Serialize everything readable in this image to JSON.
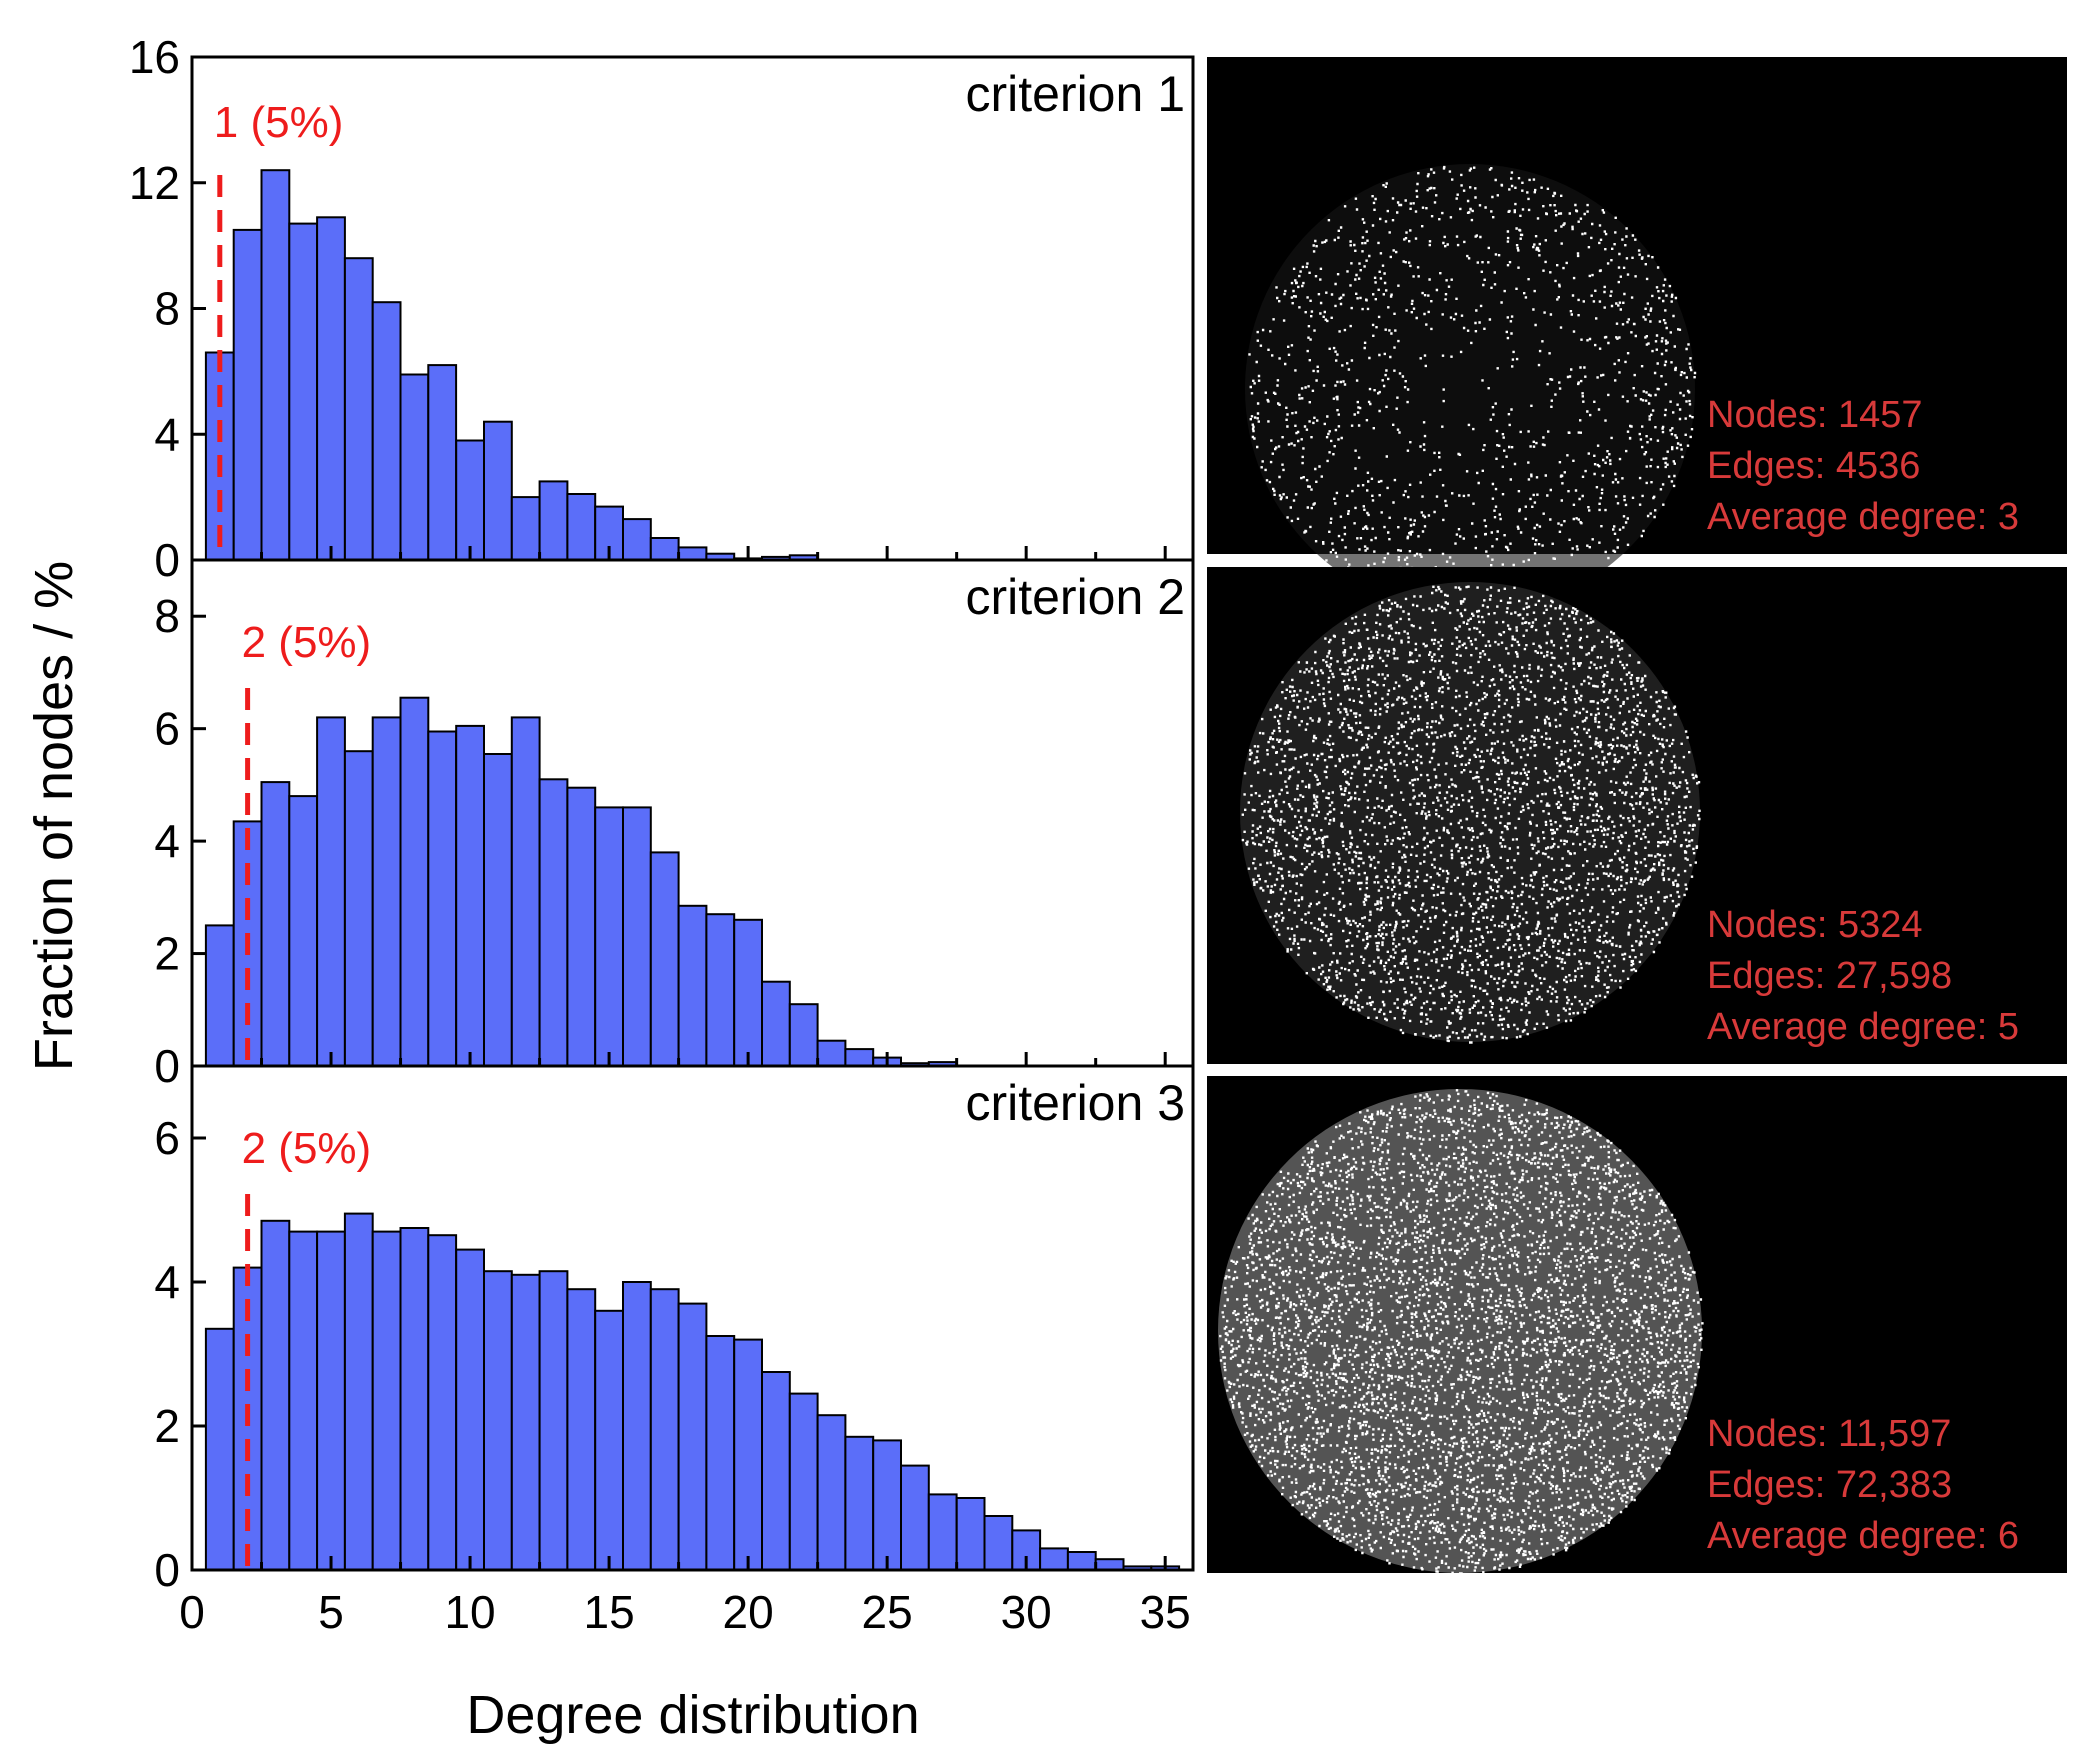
{
  "chart_data": [
    {
      "type": "bar",
      "title": "criterion 1",
      "xlabel": "Degree distribution",
      "ylabel": "Fraction of nodes / %",
      "xlim": [
        0,
        36
      ],
      "ylim": [
        0,
        16
      ],
      "yticks": [
        0,
        4,
        8,
        12,
        16
      ],
      "xticks": [
        0,
        5,
        10,
        15,
        20,
        25,
        30,
        35
      ],
      "bin_start": 0.5,
      "bin_width": 1,
      "values": [
        6.6,
        10.5,
        12.4,
        10.7,
        10.9,
        9.6,
        8.2,
        5.9,
        6.2,
        3.8,
        4.4,
        2.0,
        2.5,
        2.1,
        1.7,
        1.3,
        0.7,
        0.4,
        0.2,
        0.05,
        0.1,
        0.15,
        0,
        0,
        0,
        0,
        0,
        0,
        0,
        0,
        0,
        0,
        0,
        0,
        0
      ],
      "marker": {
        "x": 1,
        "label": "1 (5%)"
      },
      "network": {
        "nodes": "Nodes: 1457",
        "edges": "Edges: 4536",
        "avg": "Average degree: 3"
      }
    },
    {
      "type": "bar",
      "title": "criterion 2",
      "xlabel": "Degree distribution",
      "ylabel": "Fraction of nodes / %",
      "xlim": [
        0,
        36
      ],
      "ylim": [
        0,
        9
      ],
      "yticks": [
        0,
        2,
        4,
        6,
        8
      ],
      "xticks": [
        0,
        5,
        10,
        15,
        20,
        25,
        30,
        35
      ],
      "bin_start": 0.5,
      "bin_width": 1,
      "values": [
        2.5,
        4.35,
        5.05,
        4.8,
        6.2,
        5.6,
        6.2,
        6.55,
        5.95,
        6.05,
        5.55,
        6.2,
        5.1,
        4.95,
        4.6,
        4.6,
        3.8,
        2.85,
        2.7,
        2.6,
        1.5,
        1.1,
        0.45,
        0.3,
        0.15,
        0.05,
        0.07,
        0,
        0,
        0,
        0,
        0,
        0,
        0,
        0
      ],
      "marker": {
        "x": 2,
        "label": "2 (5%)"
      },
      "network": {
        "nodes": "Nodes: 5324",
        "edges": "Edges: 27,598",
        "avg": "Average degree: 5"
      }
    },
    {
      "type": "bar",
      "title": "criterion 3",
      "xlabel": "Degree distribution",
      "ylabel": "Fraction of nodes / %",
      "xlim": [
        0,
        36
      ],
      "ylim": [
        0,
        7
      ],
      "yticks": [
        0,
        2,
        4,
        6
      ],
      "xticks": [
        0,
        5,
        10,
        15,
        20,
        25,
        30,
        35
      ],
      "bin_start": 0.5,
      "bin_width": 1,
      "values": [
        3.35,
        4.2,
        4.85,
        4.7,
        4.7,
        4.95,
        4.7,
        4.75,
        4.65,
        4.45,
        4.15,
        4.1,
        4.15,
        3.9,
        3.6,
        4.0,
        3.9,
        3.7,
        3.25,
        3.2,
        2.75,
        2.45,
        2.15,
        1.85,
        1.8,
        1.45,
        1.05,
        1.0,
        0.75,
        0.55,
        0.3,
        0.25,
        0.15,
        0.05,
        0.05
      ],
      "marker": {
        "x": 2,
        "label": "2 (5%)"
      },
      "network": {
        "nodes": "Nodes: 11,597",
        "edges": "Edges: 72,383",
        "avg": "Average degree: 6"
      }
    }
  ],
  "colors": {
    "bar": "#5b6ef9",
    "marker": "#ee1c1c",
    "stats": "#d83a3a",
    "node": "#ffffff"
  },
  "axes": {
    "xlabel": "Degree distribution",
    "ylabel": "Fraction of nodes / %",
    "xtick_labels": [
      "0",
      "5",
      "10",
      "15",
      "20",
      "25",
      "30",
      "35"
    ]
  }
}
